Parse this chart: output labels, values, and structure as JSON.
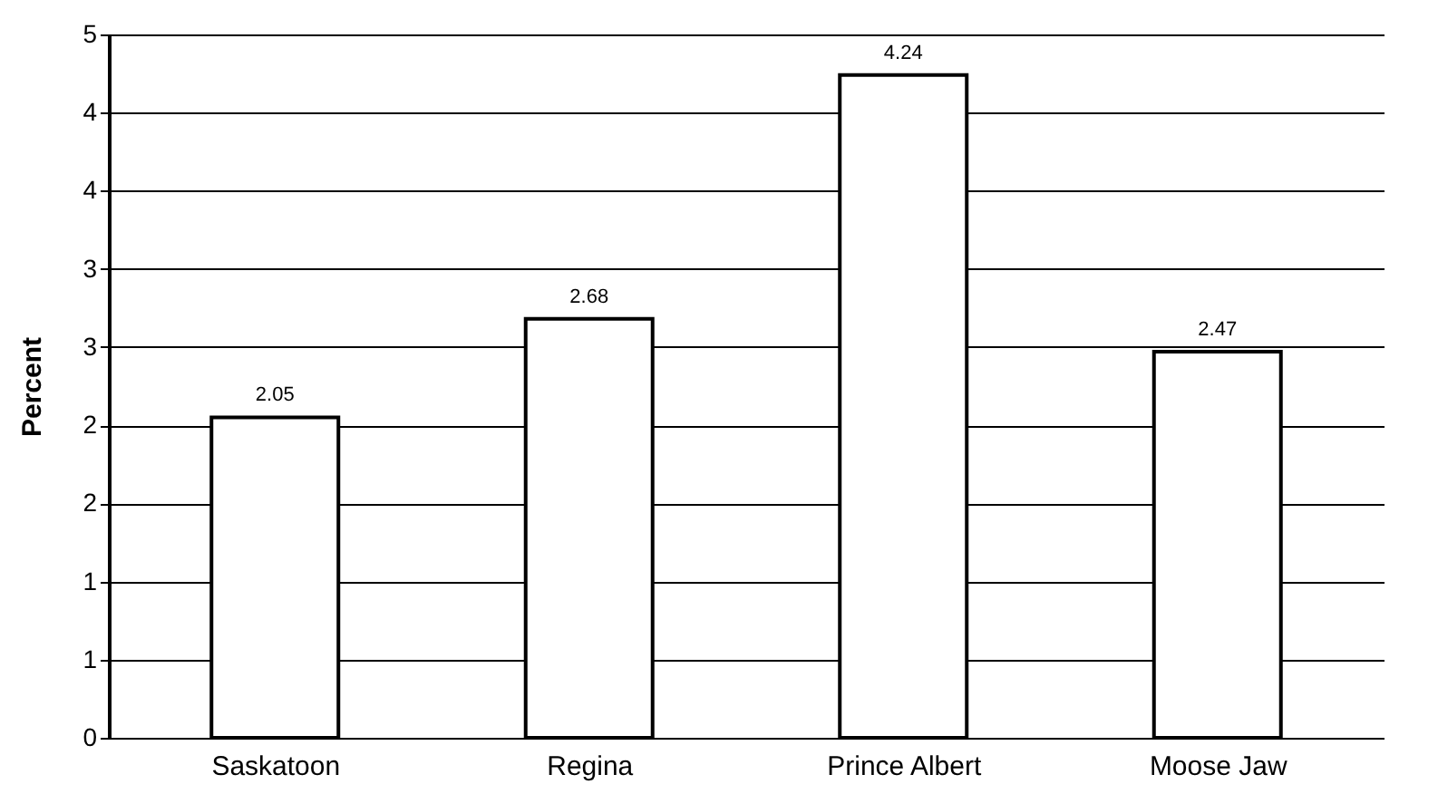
{
  "chart_data": {
    "type": "bar",
    "ylabel": "Percent",
    "categories": [
      "Saskatoon",
      "Regina",
      "Prince Albert",
      "Moose Jaw"
    ],
    "values": [
      2.05,
      2.68,
      4.24,
      2.47
    ],
    "color": "#ffffff",
    "ylim": [
      0,
      4.5
    ],
    "yticks": [
      0,
      {
        "value": 0.5,
        "label": "1"
      },
      1,
      {
        "value": 1.5,
        "label": "2"
      },
      2,
      {
        "value": 2.5,
        "label": "3"
      },
      3,
      {
        "value": 3.5,
        "label": "4"
      },
      4,
      {
        "value": 4.5,
        "label": "5"
      }
    ],
    "grid": "y",
    "data_labels": true
  }
}
